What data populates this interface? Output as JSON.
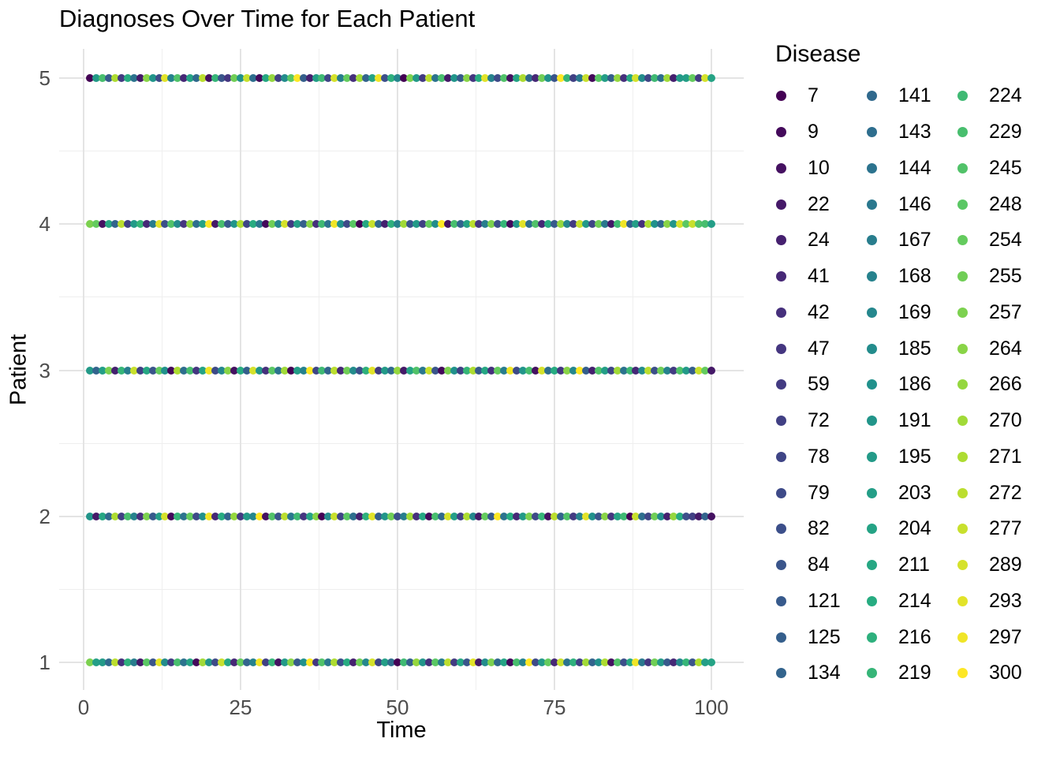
{
  "chart_data": {
    "type": "scatter",
    "title": "Diagnoses Over Time for Each Patient",
    "xlabel": "Time",
    "ylabel": "Patient",
    "x_tick_labels": [
      "0",
      "25",
      "50",
      "75",
      "100"
    ],
    "x_tick_values": [
      0,
      25,
      50,
      75,
      100
    ],
    "x_minor_gridlines": [
      12.5,
      37.5,
      62.5,
      87.5
    ],
    "y_tick_labels": [
      "5",
      "4",
      "3",
      "2",
      "1"
    ],
    "y_tick_values": [
      5,
      4,
      3,
      2,
      1
    ],
    "y_minor_gridlines": [
      4.5,
      3.5,
      2.5,
      1.5
    ],
    "time": {
      "start": 1,
      "end": 100,
      "step": 1
    },
    "grid": "major-and-minor, light gray on white, no axis lines, no tick marks",
    "legend": {
      "title": "Disease",
      "columns": 3,
      "rows": 17,
      "position": "right"
    },
    "diseases": [
      7,
      9,
      10,
      22,
      24,
      41,
      42,
      47,
      59,
      72,
      78,
      79,
      82,
      84,
      121,
      125,
      134,
      141,
      143,
      144,
      146,
      167,
      168,
      169,
      185,
      186,
      191,
      195,
      203,
      204,
      211,
      214,
      216,
      219,
      224,
      229,
      245,
      248,
      254,
      255,
      257,
      264,
      266,
      270,
      271,
      272,
      277,
      289,
      293,
      297,
      300
    ],
    "disease_colors": [
      "#440154",
      "#44095b",
      "#451161",
      "#451968",
      "#45206f",
      "#462876",
      "#46307c",
      "#453680",
      "#433b82",
      "#414084",
      "#3f4586",
      "#3e4a88",
      "#3c4f8a",
      "#3a558b",
      "#375a8c",
      "#355f8c",
      "#33648d",
      "#30698d",
      "#2e6e8e",
      "#2c738e",
      "#2a788e",
      "#287d8d",
      "#26828d",
      "#25878d",
      "#238c8c",
      "#21918c",
      "#22958a",
      "#239a88",
      "#249e87",
      "#25a385",
      "#26a783",
      "#27ac81",
      "#2eb07d",
      "#36b578",
      "#3fb973",
      "#48be6e",
      "#51c269",
      "#5ac764",
      "#64cb5e",
      "#70ce56",
      "#7cd14f",
      "#89d447",
      "#95d73f",
      "#a1da38",
      "#addc31",
      "#bbde2f",
      "#c8e02d",
      "#d5e22b",
      "#e2e329",
      "#f0e527",
      "#fde725"
    ],
    "series": [
      {
        "patient": 5,
        "disease_idx": [
          0,
          27,
          35,
          14,
          44,
          8,
          31,
          19,
          3,
          41,
          26,
          11,
          48,
          22,
          36,
          5,
          29,
          17,
          45,
          2,
          33,
          13,
          7,
          39,
          25,
          46,
          18,
          1,
          30,
          42,
          9,
          24,
          37,
          50,
          15,
          4,
          28,
          34,
          10,
          47,
          21,
          38,
          6,
          43,
          16,
          29,
          49,
          12,
          32,
          23,
          0,
          40,
          27,
          8,
          45,
          19,
          35,
          3,
          26,
          14,
          41,
          7,
          31,
          48,
          22,
          11,
          36,
          2,
          29,
          44,
          17,
          5,
          39,
          25,
          13,
          50,
          33,
          9,
          20,
          46,
          1,
          37,
          28,
          15,
          42,
          6,
          30,
          47,
          24,
          10,
          34,
          18,
          43,
          4,
          27,
          28,
          38,
          8,
          47,
          29
        ]
      },
      {
        "patient": 4,
        "disease_idx": [
          40,
          38,
          2,
          30,
          16,
          45,
          9,
          27,
          33,
          5,
          21,
          48,
          12,
          36,
          24,
          7,
          42,
          18,
          29,
          50,
          3,
          35,
          14,
          26,
          44,
          10,
          31,
          20,
          1,
          39,
          23,
          47,
          8,
          28,
          15,
          41,
          6,
          34,
          19,
          49,
          25,
          11,
          37,
          0,
          30,
          46,
          17,
          4,
          32,
          22,
          43,
          13,
          27,
          9,
          38,
          24,
          50,
          2,
          35,
          16,
          29,
          45,
          7,
          21,
          40,
          12,
          33,
          1,
          26,
          48,
          18,
          36,
          5,
          31,
          14,
          42,
          23,
          8,
          46,
          27,
          10,
          39,
          20,
          3,
          34,
          49,
          15,
          28,
          6,
          44,
          25,
          17,
          41,
          26,
          47,
          37,
          46,
          36,
          35,
          28
        ]
      },
      {
        "patient": 3,
        "disease_idx": [
          27,
          16,
          28,
          40,
          4,
          33,
          21,
          46,
          9,
          30,
          13,
          38,
          25,
          1,
          44,
          18,
          35,
          7,
          29,
          49,
          11,
          23,
          41,
          2,
          31,
          15,
          47,
          26,
          6,
          37,
          19,
          43,
          0,
          28,
          22,
          50,
          10,
          34,
          16,
          45,
          5,
          39,
          24,
          12,
          32,
          48,
          8,
          27,
          17,
          42,
          3,
          29,
          36,
          20,
          46,
          13,
          1,
          40,
          25,
          9,
          33,
          44,
          14,
          30,
          6,
          38,
          21,
          49,
          11,
          26,
          35,
          2,
          47,
          18,
          31,
          7,
          41,
          23,
          50,
          15,
          4,
          36,
          28,
          10,
          43,
          19,
          34,
          5,
          24,
          45,
          12,
          39,
          22,
          8,
          36,
          27,
          15,
          46,
          38,
          3
        ]
      },
      {
        "patient": 2,
        "disease_idx": [
          26,
          3,
          30,
          17,
          44,
          9,
          35,
          22,
          6,
          40,
          14,
          28,
          47,
          1,
          33,
          19,
          38,
          11,
          25,
          49,
          5,
          31,
          16,
          42,
          8,
          27,
          23,
          50,
          2,
          36,
          13,
          45,
          20,
          34,
          7,
          29,
          41,
          0,
          24,
          46,
          10,
          37,
          18,
          4,
          32,
          48,
          15,
          26,
          39,
          12,
          21,
          43,
          6,
          30,
          1,
          35,
          17,
          47,
          28,
          9,
          44,
          23,
          3,
          38,
          14,
          50,
          19,
          31,
          5,
          27,
          40,
          11,
          33,
          2,
          45,
          16,
          36,
          8,
          22,
          48,
          25,
          13,
          41,
          7,
          29,
          34,
          0,
          46,
          18,
          10,
          39,
          24,
          4,
          42,
          31,
          12,
          9,
          3,
          16,
          2
        ]
      },
      {
        "patient": 1,
        "disease_idx": [
          40,
          28,
          27,
          17,
          45,
          6,
          32,
          21,
          3,
          37,
          13,
          48,
          24,
          8,
          35,
          19,
          29,
          1,
          43,
          26,
          11,
          46,
          30,
          5,
          38,
          16,
          22,
          49,
          9,
          33,
          2,
          27,
          41,
          14,
          25,
          50,
          7,
          36,
          20,
          44,
          12,
          31,
          4,
          39,
          23,
          47,
          10,
          28,
          18,
          0,
          34,
          15,
          42,
          26,
          6,
          37,
          21,
          45,
          8,
          30,
          13,
          48,
          3,
          24,
          40,
          17,
          29,
          1,
          35,
          22,
          50,
          11,
          27,
          38,
          5,
          46,
          19,
          32,
          9,
          43,
          16,
          25,
          44,
          2,
          36,
          12,
          30,
          49,
          20,
          7,
          39,
          27,
          14,
          5,
          23,
          33,
          13,
          44,
          28,
          29
        ]
      }
    ]
  }
}
